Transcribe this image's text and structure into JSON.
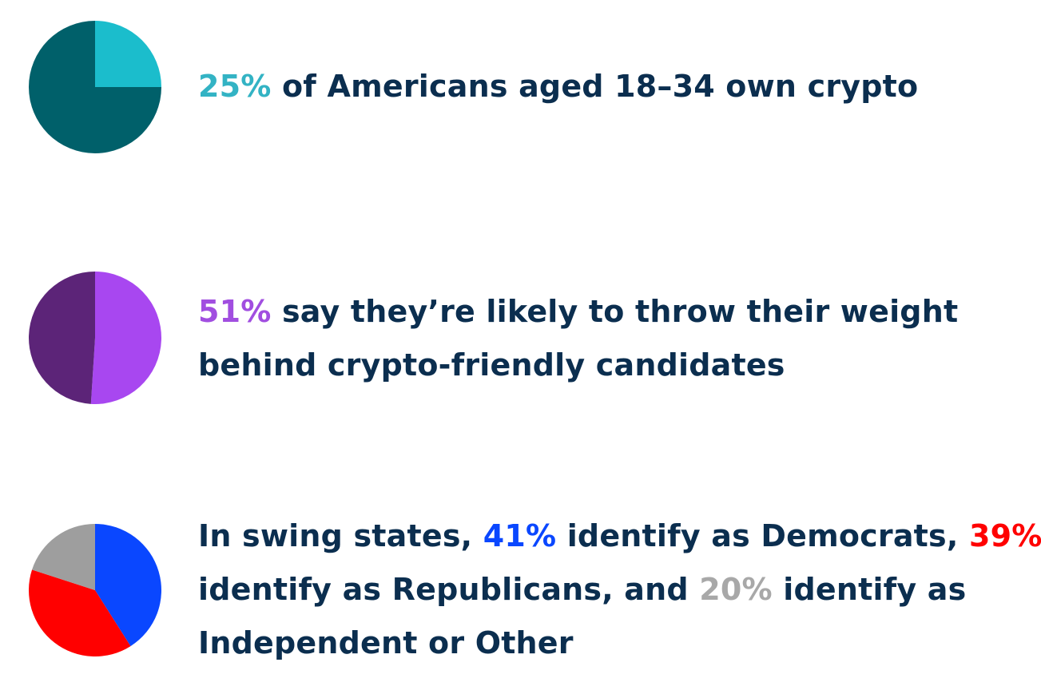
{
  "chart_data": [
    {
      "type": "pie",
      "slices": [
        {
          "value": 25,
          "color": "#1bbdcc"
        },
        {
          "value": 75,
          "color": "#00606a"
        }
      ],
      "statement": {
        "highlight": {
          "text": "25%",
          "color": "#33b3c4"
        },
        "rest": " of Americans aged 18–34 own crypto"
      }
    },
    {
      "type": "pie",
      "slices": [
        {
          "value": 51,
          "color": "#a847f0"
        },
        {
          "value": 49,
          "color": "#5c2478"
        }
      ],
      "statement": {
        "highlight": {
          "text": "51%",
          "color": "#a14ee0"
        },
        "line1_rest": " say they’re likely to throw their weight",
        "line2": "behind crypto-friendly candidates"
      }
    },
    {
      "type": "pie",
      "slices": [
        {
          "value": 41,
          "color": "#0a47ff"
        },
        {
          "value": 39,
          "color": "#ff0000"
        },
        {
          "value": 20,
          "color": "#9e9e9e"
        }
      ],
      "statement": {
        "line1_pre": "In swing states, ",
        "dem": {
          "text": "41%",
          "color": "#0a47ff"
        },
        "line1_mid": " identify as Democrats, ",
        "rep": {
          "text": "39%",
          "color": "#ff0000"
        },
        "line2_pre": "identify as Republicans, and ",
        "ind": {
          "text": "20%",
          "color": "#a8a8a8"
        },
        "line2_post": " identify as",
        "line3": "Independent or Other"
      }
    }
  ]
}
